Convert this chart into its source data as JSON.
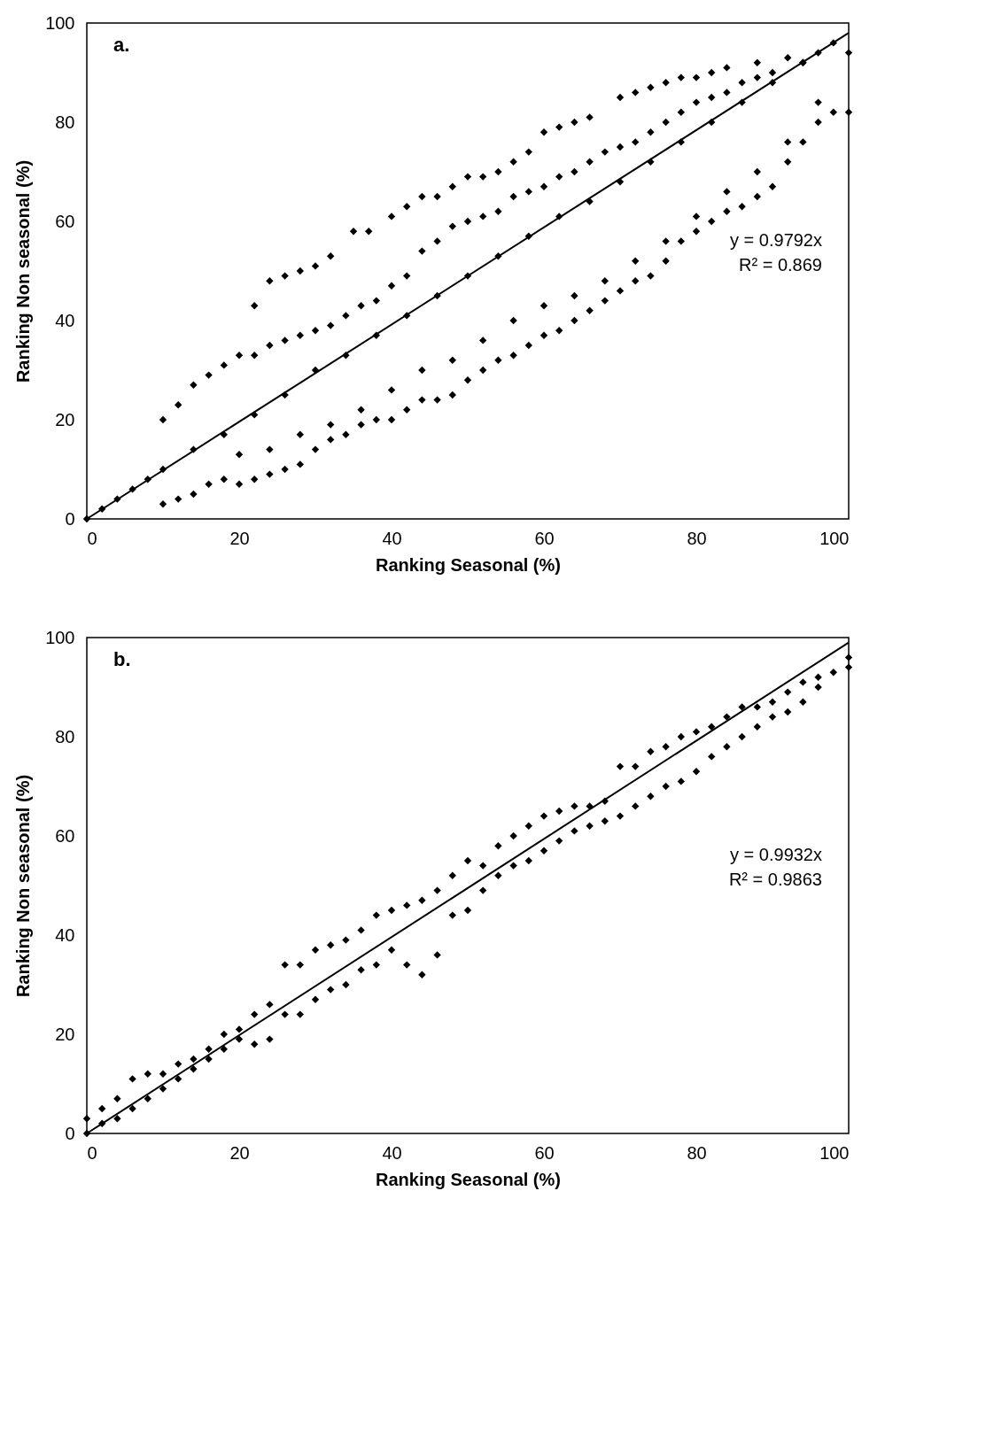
{
  "chart_data": [
    {
      "type": "scatter",
      "xlabel": "Ranking Seasonal (%)",
      "ylabel": "Ranking Non seasonal (%)",
      "xlim": [
        0,
        100
      ],
      "ylim": [
        0,
        100
      ],
      "xticks": [
        0,
        20,
        40,
        60,
        80,
        100
      ],
      "yticks": [
        0,
        20,
        40,
        60,
        80,
        100
      ],
      "grid": false,
      "annotations": [
        "a.",
        "y = 0.9792x",
        "R² = 0.869"
      ],
      "series": [
        {
          "color": "#000000",
          "marker": "diamond",
          "x": [
            22,
            24,
            26,
            28,
            30,
            32,
            35,
            37,
            40,
            42,
            44,
            46,
            48,
            50,
            52,
            54,
            56,
            58,
            60,
            62,
            64,
            66,
            70,
            72,
            74,
            76,
            78,
            80,
            82,
            84,
            88,
            92,
            96,
            100,
            10,
            12,
            14,
            16,
            18,
            20,
            22,
            24,
            26,
            28,
            30,
            32,
            34,
            36,
            38,
            40,
            42,
            44,
            46,
            48,
            50,
            52,
            54,
            56,
            58,
            60,
            62,
            64,
            66,
            68,
            70,
            72,
            74,
            76,
            78,
            80,
            82,
            84,
            86,
            88,
            90,
            94,
            0,
            2,
            4,
            6,
            8,
            10,
            14,
            18,
            22,
            26,
            30,
            34,
            38,
            42,
            46,
            50,
            54,
            58,
            62,
            66,
            70,
            74,
            78,
            82,
            86,
            90,
            94,
            98,
            10,
            12,
            14,
            16,
            18,
            20,
            22,
            24,
            26,
            28,
            30,
            32,
            34,
            36,
            38,
            40,
            42,
            44,
            46,
            48,
            50,
            52,
            54,
            56,
            58,
            60,
            62,
            64,
            66,
            68,
            70,
            72,
            74,
            76,
            78,
            80,
            82,
            84,
            86,
            88,
            90,
            92,
            94,
            96,
            98,
            100,
            20,
            24,
            28,
            32,
            36,
            40,
            44,
            48,
            52,
            56,
            60,
            64,
            68,
            72,
            76,
            80,
            84,
            88,
            92,
            96
          ],
          "values": [
            43,
            48,
            49,
            50,
            51,
            53,
            58,
            58,
            61,
            63,
            65,
            65,
            67,
            69,
            69,
            70,
            72,
            74,
            78,
            79,
            80,
            81,
            85,
            86,
            87,
            88,
            89,
            89,
            90,
            91,
            92,
            93,
            94,
            94,
            20,
            23,
            27,
            29,
            31,
            33,
            33,
            35,
            36,
            37,
            38,
            39,
            41,
            43,
            44,
            47,
            49,
            54,
            56,
            59,
            60,
            61,
            62,
            65,
            66,
            67,
            69,
            70,
            72,
            74,
            75,
            76,
            78,
            80,
            82,
            84,
            85,
            86,
            88,
            89,
            90,
            92,
            0,
            2,
            4,
            6,
            8,
            10,
            14,
            17,
            21,
            25,
            30,
            33,
            37,
            41,
            45,
            49,
            53,
            57,
            61,
            64,
            68,
            72,
            76,
            80,
            84,
            88,
            92,
            96,
            3,
            4,
            5,
            7,
            8,
            7,
            8,
            9,
            10,
            11,
            14,
            16,
            17,
            19,
            20,
            20,
            22,
            24,
            24,
            25,
            28,
            30,
            32,
            33,
            35,
            37,
            38,
            40,
            42,
            44,
            46,
            48,
            49,
            52,
            56,
            58,
            60,
            62,
            63,
            65,
            67,
            72,
            76,
            80,
            82,
            82,
            13,
            14,
            17,
            19,
            22,
            26,
            30,
            32,
            36,
            40,
            43,
            45,
            48,
            52,
            56,
            61,
            66,
            70,
            76,
            84
          ]
        },
        {
          "type": "line",
          "color": "#000000",
          "x": [
            0,
            100
          ],
          "values": [
            0,
            98
          ]
        }
      ]
    },
    {
      "type": "scatter",
      "xlabel": "Ranking Seasonal (%)",
      "ylabel": "Ranking Non seasonal (%)",
      "xlim": [
        0,
        100
      ],
      "ylim": [
        0,
        100
      ],
      "xticks": [
        0,
        20,
        40,
        60,
        80,
        100
      ],
      "yticks": [
        0,
        20,
        40,
        60,
        80,
        100
      ],
      "grid": false,
      "annotations": [
        "b.",
        "y = 0.9932x",
        "R² = 0.9863"
      ],
      "series": [
        {
          "color": "#000000",
          "marker": "diamond",
          "x": [
            0,
            0,
            2,
            2,
            4,
            4,
            6,
            6,
            8,
            8,
            10,
            10,
            12,
            12,
            14,
            14,
            16,
            16,
            18,
            18,
            20,
            20,
            22,
            22,
            24,
            24,
            26,
            26,
            28,
            28,
            30,
            30,
            32,
            32,
            34,
            34,
            36,
            36,
            38,
            38,
            40,
            40,
            42,
            42,
            44,
            44,
            46,
            46,
            48,
            48,
            50,
            50,
            52,
            52,
            54,
            54,
            56,
            56,
            58,
            58,
            60,
            60,
            62,
            62,
            64,
            64,
            66,
            66,
            68,
            68,
            70,
            70,
            72,
            72,
            74,
            74,
            76,
            76,
            78,
            78,
            80,
            80,
            82,
            82,
            84,
            84,
            86,
            86,
            88,
            88,
            90,
            90,
            92,
            92,
            94,
            94,
            96,
            96,
            98,
            100,
            100
          ],
          "values": [
            0,
            3,
            2,
            5,
            3,
            7,
            5,
            11,
            7,
            12,
            9,
            12,
            11,
            14,
            13,
            15,
            15,
            17,
            17,
            20,
            19,
            21,
            18,
            24,
            19,
            26,
            24,
            34,
            24,
            34,
            27,
            37,
            29,
            38,
            30,
            39,
            33,
            41,
            34,
            44,
            37,
            45,
            34,
            46,
            32,
            47,
            36,
            49,
            44,
            52,
            45,
            55,
            49,
            54,
            52,
            58,
            54,
            60,
            55,
            62,
            57,
            64,
            59,
            65,
            61,
            66,
            62,
            66,
            63,
            67,
            64,
            74,
            66,
            74,
            68,
            77,
            70,
            78,
            71,
            80,
            73,
            81,
            76,
            82,
            78,
            84,
            80,
            86,
            82,
            86,
            84,
            87,
            85,
            89,
            87,
            91,
            90,
            92,
            93,
            94,
            96
          ]
        },
        {
          "type": "line",
          "color": "#000000",
          "x": [
            0,
            100
          ],
          "values": [
            0,
            99
          ]
        }
      ]
    }
  ]
}
